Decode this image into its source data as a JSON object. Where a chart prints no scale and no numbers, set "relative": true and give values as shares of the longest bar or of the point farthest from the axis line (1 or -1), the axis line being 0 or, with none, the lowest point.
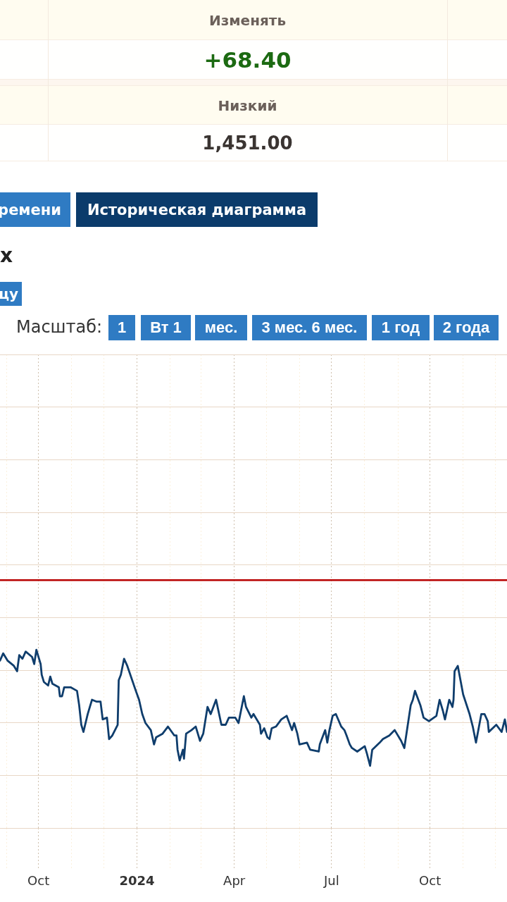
{
  "chart_data": [
    {
      "type": "other",
      "annotations": [
        "Изменять",
        "+68.40",
        "Низкий",
        "1,451.00"
      ]
    },
    {
      "type": "line",
      "title": "х",
      "annotations": [
        "ремени",
        "Историческая диаграмма",
        "цу",
        "Масштаб:",
        "1",
        "Вт 1",
        "мес.",
        "3 мес. 6 мес.",
        "1 год",
        "2 года"
      ],
      "relative": true,
      "grid": true,
      "xlim": [
        "2023-08-26",
        "2024-12-12"
      ],
      "xticks": [
        {
          "value": "2023-09-01",
          "label": null
        },
        {
          "value": "2023-10-01",
          "label": "Oct"
        },
        {
          "value": "2023-11-01",
          "label": null
        },
        {
          "value": "2023-12-01",
          "label": null
        },
        {
          "value": "2024-01-01",
          "label": "2024"
        },
        {
          "value": "2024-02-01",
          "label": null
        },
        {
          "value": "2024-03-01",
          "label": null
        },
        {
          "value": "2024-04-01",
          "label": "Apr"
        },
        {
          "value": "2024-05-01",
          "label": null
        },
        {
          "value": "2024-06-01",
          "label": null
        },
        {
          "value": "2024-07-01",
          "label": "Jul"
        },
        {
          "value": "2024-08-01",
          "label": null
        },
        {
          "value": "2024-09-01",
          "label": null
        },
        {
          "value": "2024-10-01",
          "label": "Oct"
        },
        {
          "value": "2024-11-01",
          "label": null
        },
        {
          "value": "2024-12-01",
          "label": null
        }
      ],
      "x": [
        "2023-08-26",
        "2023-08-29",
        "2023-09-02",
        "2023-09-08",
        "2023-09-11",
        "2023-09-13",
        "2023-09-16",
        "2023-09-19",
        "2023-09-25",
        "2023-09-27",
        "2023-09-29",
        "2023-10-03",
        "2023-10-04",
        "2023-10-06",
        "2023-10-10",
        "2023-10-12",
        "2023-10-14",
        "2023-10-20",
        "2023-10-21",
        "2023-10-23",
        "2023-10-25",
        "2023-10-31",
        "2023-11-06",
        "2023-11-08",
        "2023-11-10",
        "2023-11-12",
        "2023-11-16",
        "2023-11-18",
        "2023-11-20",
        "2023-11-24",
        "2023-11-28",
        "2023-11-30",
        "2023-12-04",
        "2023-12-06",
        "2023-12-09",
        "2023-12-14",
        "2023-12-15",
        "2023-12-17",
        "2023-12-20",
        "2023-12-23",
        "2023-12-31",
        "2024-01-03",
        "2024-01-06",
        "2024-01-09",
        "2024-01-14",
        "2024-01-17",
        "2024-01-19",
        "2024-01-25",
        "2024-01-30",
        "2024-02-05",
        "2024-02-07",
        "2024-02-08",
        "2024-02-10",
        "2024-02-13",
        "2024-02-14",
        "2024-02-16",
        "2024-02-21",
        "2024-02-25",
        "2024-02-29",
        "2024-03-03",
        "2024-03-07",
        "2024-03-10",
        "2024-03-15",
        "2024-03-20",
        "2024-03-24",
        "2024-03-27",
        "2024-04-02",
        "2024-04-05",
        "2024-04-10",
        "2024-04-12",
        "2024-04-17",
        "2024-04-19",
        "2024-04-25",
        "2024-04-26",
        "2024-04-29",
        "2024-05-02",
        "2024-05-04",
        "2024-05-06",
        "2024-05-10",
        "2024-05-15",
        "2024-05-20",
        "2024-05-25",
        "2024-05-27",
        "2024-05-30",
        "2024-06-01",
        "2024-06-08",
        "2024-06-11",
        "2024-06-19",
        "2024-06-20",
        "2024-06-25",
        "2024-06-27",
        "2024-06-29",
        "2024-07-02",
        "2024-07-05",
        "2024-07-10",
        "2024-07-13",
        "2024-07-15",
        "2024-07-18",
        "2024-07-20",
        "2024-07-25",
        "2024-08-01",
        "2024-08-03",
        "2024-08-06",
        "2024-08-08",
        "2024-08-15",
        "2024-08-18",
        "2024-08-24",
        "2024-08-29",
        "2024-09-04",
        "2024-09-07",
        "2024-09-09",
        "2024-09-13",
        "2024-09-15",
        "2024-09-17",
        "2024-09-22",
        "2024-09-25",
        "2024-09-30",
        "2024-10-07",
        "2024-10-10",
        "2024-10-13",
        "2024-10-15",
        "2024-10-19",
        "2024-10-22",
        "2024-10-23",
        "2024-10-24",
        "2024-10-27",
        "2024-11-01",
        "2024-11-07",
        "2024-11-10",
        "2024-11-13",
        "2024-11-18",
        "2024-11-21",
        "2024-11-24",
        "2024-11-25",
        "2024-12-02",
        "2024-12-07",
        "2024-12-10",
        "2024-12-12"
      ],
      "series": [
        {
          "color": "#0f3d6c",
          "values": [
            0.94,
            0.98,
            0.94,
            0.91,
            0.88,
            0.97,
            0.95,
            0.99,
            0.96,
            0.92,
            1.0,
            0.92,
            0.86,
            0.82,
            0.8,
            0.85,
            0.81,
            0.79,
            0.74,
            0.74,
            0.79,
            0.79,
            0.77,
            0.69,
            0.58,
            0.54,
            0.64,
            0.68,
            0.72,
            0.71,
            0.71,
            0.61,
            0.62,
            0.5,
            0.52,
            0.58,
            0.83,
            0.86,
            0.95,
            0.91,
            0.77,
            0.72,
            0.64,
            0.59,
            0.55,
            0.47,
            0.51,
            0.53,
            0.57,
            0.52,
            0.52,
            0.44,
            0.38,
            0.44,
            0.39,
            0.53,
            0.55,
            0.57,
            0.49,
            0.53,
            0.68,
            0.64,
            0.72,
            0.58,
            0.58,
            0.62,
            0.62,
            0.59,
            0.74,
            0.68,
            0.62,
            0.64,
            0.58,
            0.53,
            0.56,
            0.51,
            0.5,
            0.56,
            0.57,
            0.61,
            0.63,
            0.55,
            0.59,
            0.53,
            0.47,
            0.48,
            0.44,
            0.43,
            0.47,
            0.55,
            0.48,
            0.55,
            0.63,
            0.64,
            0.57,
            0.55,
            0.52,
            0.47,
            0.45,
            0.43,
            0.46,
            0.42,
            0.35,
            0.44,
            0.48,
            0.5,
            0.52,
            0.55,
            0.49,
            0.45,
            0.53,
            0.69,
            0.72,
            0.77,
            0.69,
            0.62,
            0.6,
            0.63,
            0.72,
            0.66,
            0.61,
            0.72,
            0.68,
            0.72,
            0.88,
            0.91,
            0.75,
            0.64,
            0.57,
            0.48,
            0.64,
            0.64,
            0.6,
            0.54,
            0.58,
            0.54,
            0.61,
            0.54
          ]
        }
      ],
      "ref_lines": [
        {
          "axis": "y",
          "value": 1.39,
          "color": "#b80000"
        }
      ]
    }
  ]
}
